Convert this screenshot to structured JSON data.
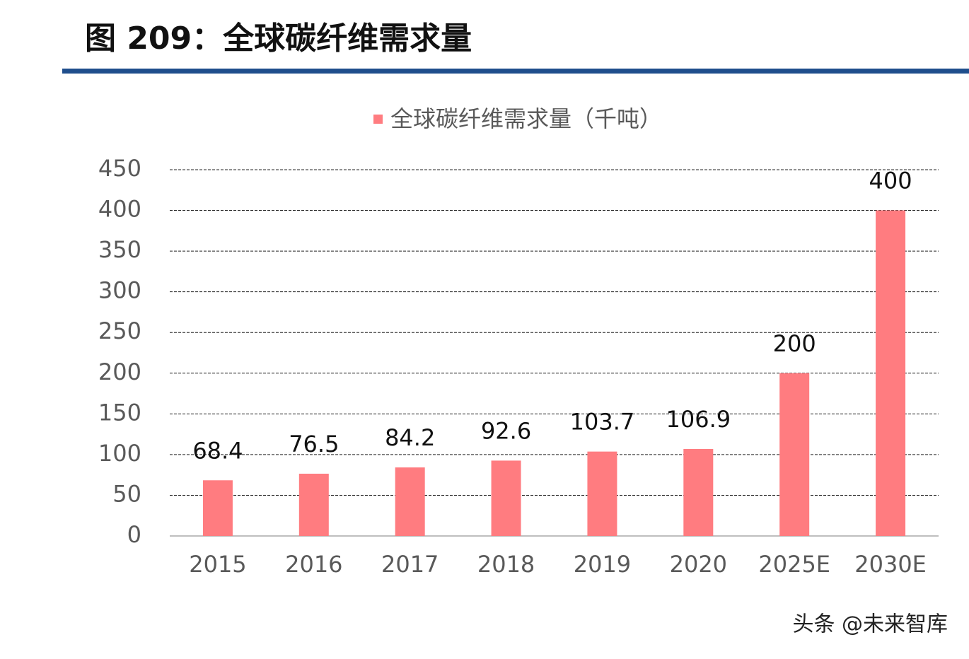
{
  "header": {
    "title": "图 209：全球碳纤维需求量"
  },
  "chart_data": {
    "type": "bar",
    "categories": [
      "2015",
      "2016",
      "2017",
      "2018",
      "2019",
      "2020",
      "2025E",
      "2030E"
    ],
    "series": [
      {
        "name": "全球碳纤维需求量（千吨）",
        "color": "#ff7c80",
        "values": [
          68.4,
          76.5,
          84.2,
          92.6,
          103.7,
          106.9,
          200,
          400
        ]
      }
    ],
    "ylim": [
      0,
      450
    ],
    "yticks": [
      0,
      50,
      100,
      150,
      200,
      250,
      300,
      350,
      400,
      450
    ],
    "grid": true,
    "legend": "top"
  },
  "watermark": "头条 @未来智库"
}
